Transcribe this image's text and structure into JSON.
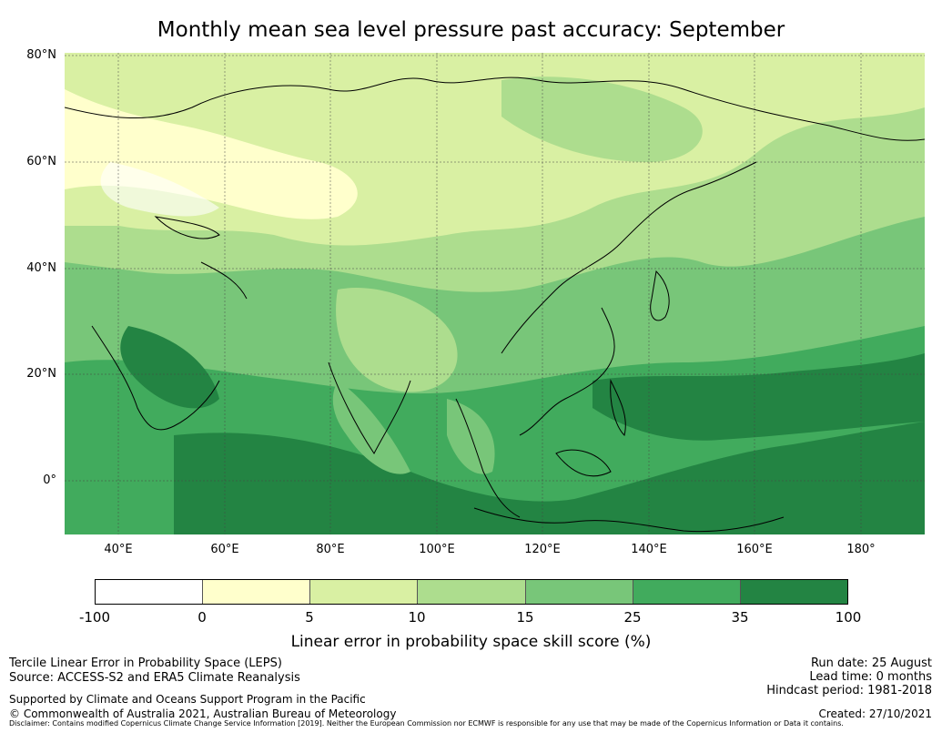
{
  "title": "Monthly mean sea level pressure past accuracy: September",
  "map": {
    "lat_ticks": [
      "80°N",
      "60°N",
      "40°N",
      "20°N",
      "0°"
    ],
    "lon_ticks": [
      "40°E",
      "60°E",
      "80°E",
      "100°E",
      "120°E",
      "140°E",
      "160°E",
      "180°"
    ],
    "region": {
      "lon_min": 30,
      "lon_max": 192,
      "lat_min": -10,
      "lat_max": 80
    }
  },
  "colorbar": {
    "label": "Linear error in probability space skill score (%)",
    "ticks": [
      "-100",
      "0",
      "5",
      "10",
      "15",
      "25",
      "35",
      "100"
    ],
    "colors": [
      "#ffffff",
      "#ffffcc",
      "#d9f0a3",
      "#addd8e",
      "#78c679",
      "#41ab5d",
      "#238443"
    ]
  },
  "footer": {
    "left_line1": "Tercile Linear Error in Probability Space (LEPS)",
    "left_line2": "Source: ACCESS-S2 and ERA5 Climate Reanalysis",
    "supported": "Supported by Climate and Oceans Support Program in the Pacific",
    "copyright": "© Commonwealth of Australia 2021, Australian Bureau of Meteorology",
    "run_date": "Run date: 25 August",
    "lead_time": "Lead time: 0 months",
    "hindcast": "Hindcast period: 1981-2018",
    "created": "Created: 27/10/2021",
    "disclaimer": "Disclaimer: Contains modified Copernicus Climate Change Service Information [2019]. Neither the European Commission nor ECMWF is responsible for any use that may be made of the Copernicus Information or Data it contains."
  }
}
